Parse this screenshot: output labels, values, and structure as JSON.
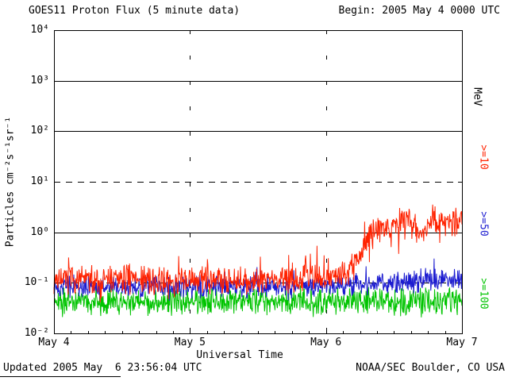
{
  "header": {
    "title": "GOES11 Proton Flux (5 minute data)",
    "begin_label": "Begin: 2005 May 4 0000 UTC"
  },
  "axes": {
    "xlabel": "Universal Time",
    "ylabel": "Particles cm⁻²s⁻¹sr⁻¹",
    "right_unit_label": "MeV"
  },
  "legend": [
    {
      "label": ">=10",
      "color": "#ff2200"
    },
    {
      "label": ">=50",
      "color": "#1c1cd0"
    },
    {
      "label": ">=100",
      "color": "#00c400"
    }
  ],
  "footer": {
    "updated": "Updated 2005 May  6 23:56:04 UTC",
    "credit": "NOAA/SEC Boulder, CO USA"
  },
  "chart_data": {
    "type": "line",
    "title": "GOES11 Proton Flux (5 minute data)",
    "xlabel": "Universal Time",
    "ylabel": "Particles cm⁻²s⁻¹sr⁻¹",
    "x_start": "2005 May 4 0000 UTC",
    "x_hours_span": 72,
    "cadence_minutes": 5,
    "y_scale": "log10",
    "ylim": [
      0.01,
      10000
    ],
    "y_tick_labels": [
      "10⁴",
      "10³",
      "10²",
      "10¹",
      "10⁰",
      "10⁻¹",
      "10⁻²"
    ],
    "x_ticks": [
      {
        "hours": 0,
        "label": "May 4"
      },
      {
        "hours": 24,
        "label": "May 5"
      },
      {
        "hours": 48,
        "label": "May 6"
      },
      {
        "hours": 72,
        "label": "May 7"
      }
    ],
    "hlines": [
      {
        "y": 1000,
        "style": "solid"
      },
      {
        "y": 100,
        "style": "solid"
      },
      {
        "y": 10,
        "style": "dashed"
      },
      {
        "y": 1,
        "style": "solid"
      },
      {
        "y": 0.1,
        "style": "dashdot"
      }
    ],
    "vlines_hours": [
      24,
      48
    ],
    "series": [
      {
        "name": ">=10 MeV",
        "color": "#ff2200",
        "seed": 7,
        "noise_log10": 0.16,
        "spike_prob": 0.1,
        "spike_log10": 0.45,
        "median_breakpoints": [
          [
            0,
            0.12
          ],
          [
            24,
            0.11
          ],
          [
            44,
            0.12
          ],
          [
            50,
            0.13
          ],
          [
            52,
            0.16
          ],
          [
            54,
            0.35
          ],
          [
            55,
            0.55
          ],
          [
            56,
            0.85
          ],
          [
            57,
            1.1
          ],
          [
            58,
            1.35
          ],
          [
            60,
            1.5
          ],
          [
            62,
            1.6
          ],
          [
            63,
            1.5
          ],
          [
            64,
            1.15
          ],
          [
            65,
            0.95
          ],
          [
            66,
            1.3
          ],
          [
            67,
            1.55
          ],
          [
            68,
            1.65
          ],
          [
            69,
            1.5
          ],
          [
            70,
            1.65
          ],
          [
            71,
            1.55
          ],
          [
            72,
            1.65
          ]
        ]
      },
      {
        "name": ">=50 MeV",
        "color": "#1c1cd0",
        "seed": 13,
        "noise_log10": 0.13,
        "spike_prob": 0.06,
        "spike_log10": 0.28,
        "median_breakpoints": [
          [
            0,
            0.085
          ],
          [
            50,
            0.085
          ],
          [
            54,
            0.09
          ],
          [
            58,
            0.1
          ],
          [
            62,
            0.105
          ],
          [
            66,
            0.115
          ],
          [
            70,
            0.11
          ],
          [
            72,
            0.115
          ]
        ]
      },
      {
        "name": ">=100 MeV",
        "color": "#00c400",
        "seed": 21,
        "noise_log10": 0.16,
        "spike_prob": 0.07,
        "spike_log10": 0.22,
        "median_breakpoints": [
          [
            0,
            0.042
          ],
          [
            72,
            0.042
          ]
        ]
      }
    ]
  }
}
